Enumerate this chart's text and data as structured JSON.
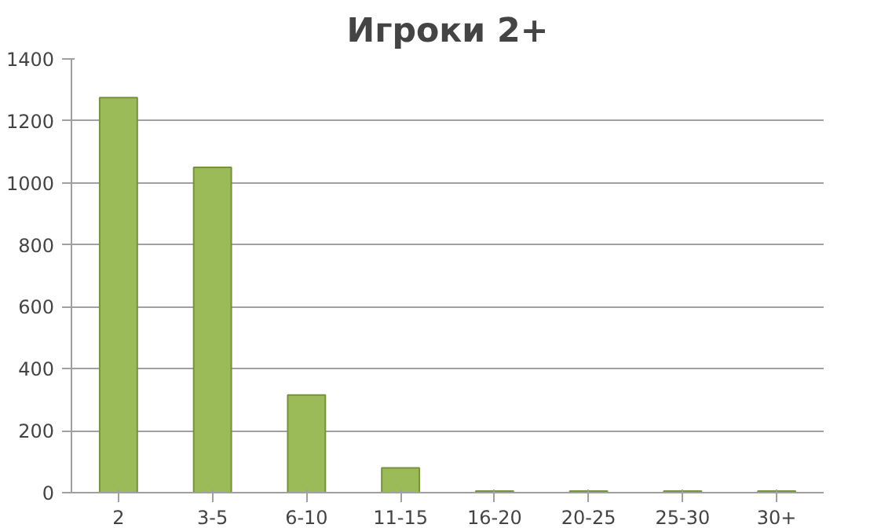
{
  "chart_data": {
    "type": "bar",
    "title": "Игроки 2+",
    "categories": [
      "2",
      "3-5",
      "6-10",
      "11-15",
      "16-20",
      "20-25",
      "25-30",
      "30+"
    ],
    "values": [
      1275,
      1050,
      315,
      80,
      5,
      5,
      5,
      5
    ],
    "color": "#9bbb59",
    "ylim": [
      0,
      1400
    ],
    "yticks": [
      0,
      200,
      400,
      600,
      800,
      1000,
      1200,
      1400
    ],
    "grid": "y"
  }
}
